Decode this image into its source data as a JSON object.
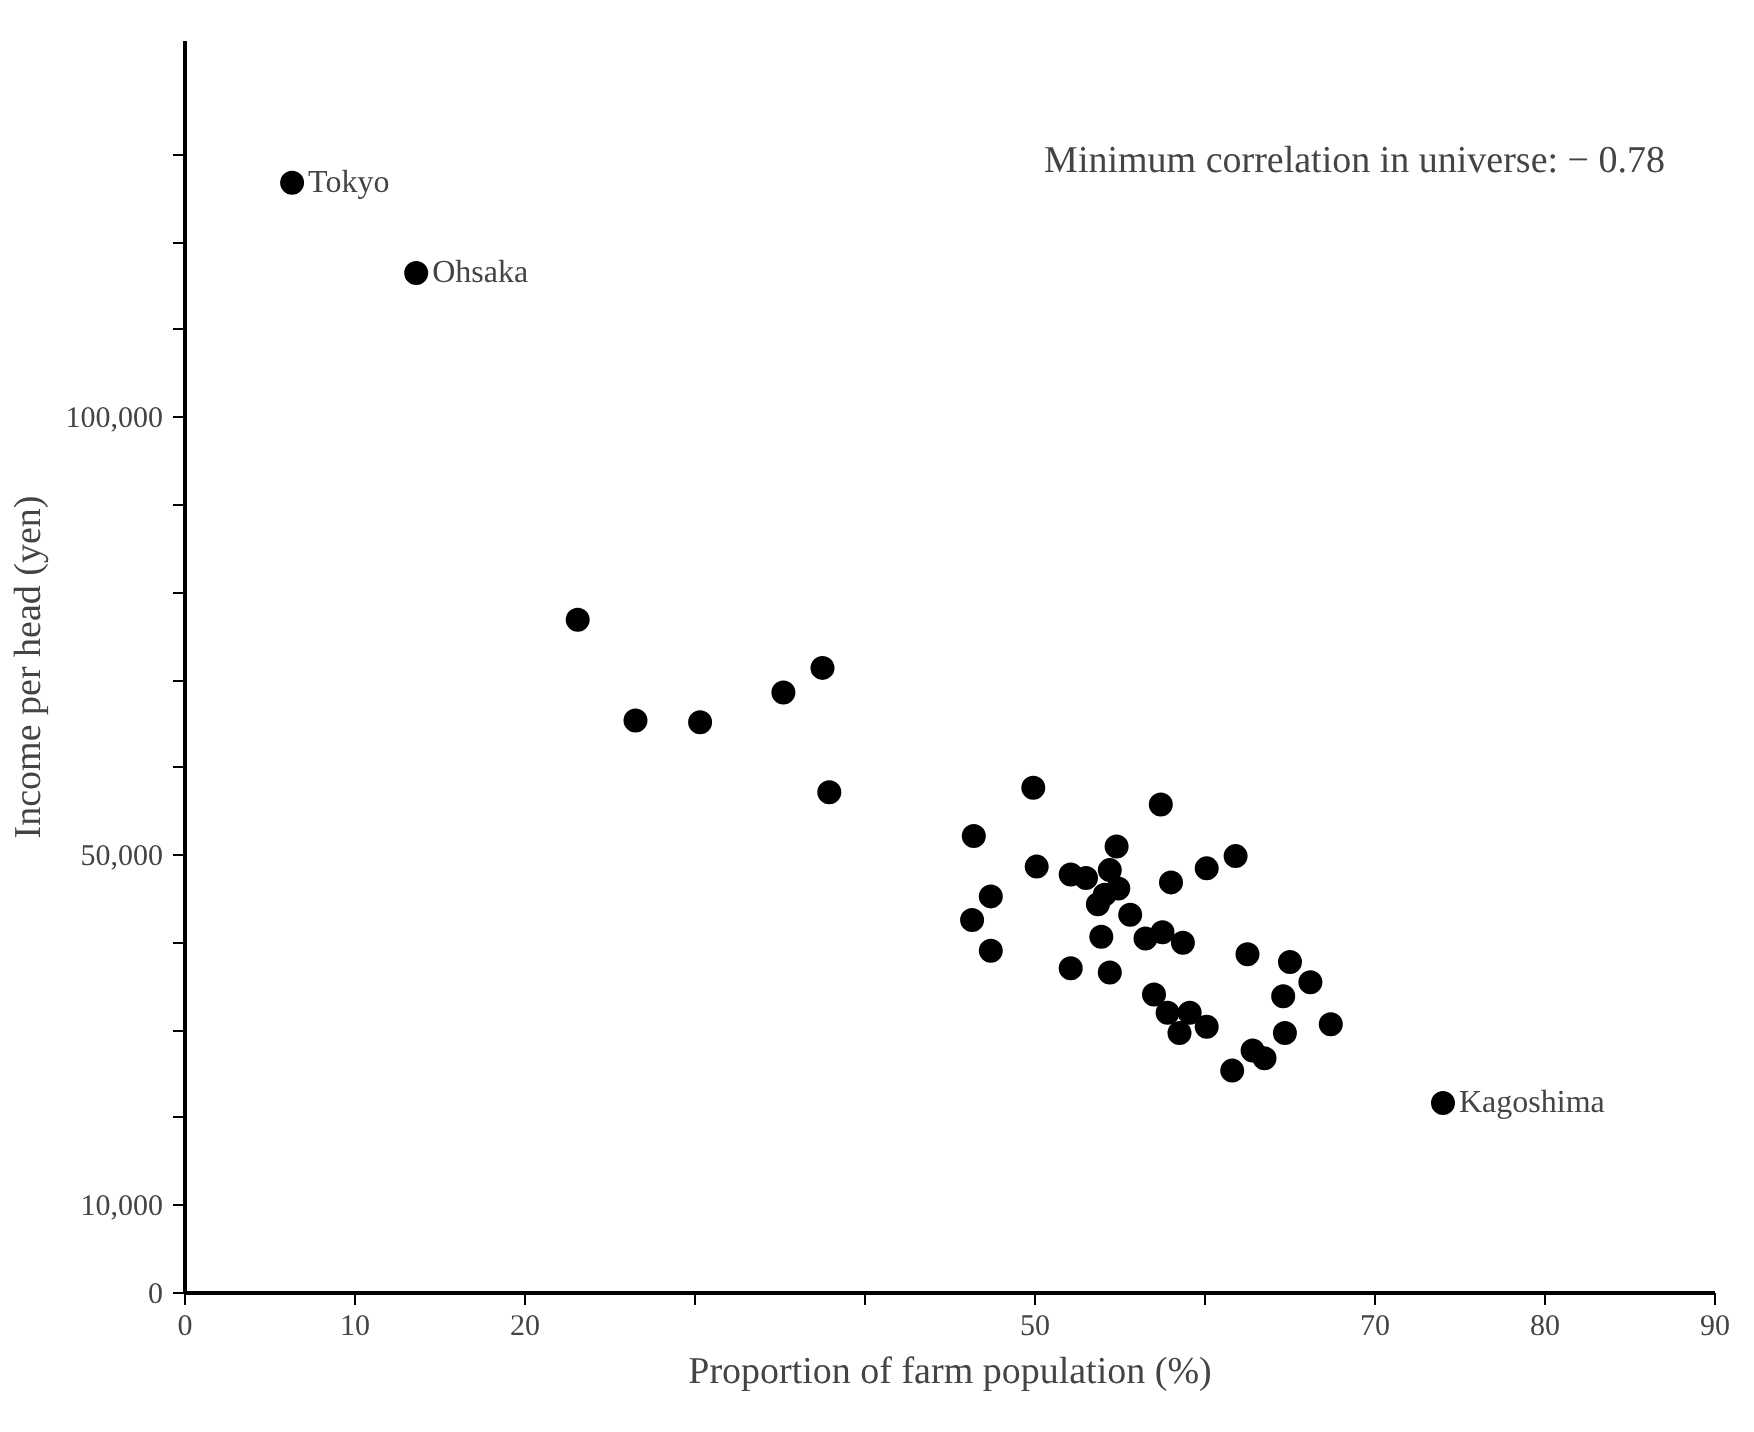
{
  "chart_data": {
    "type": "scatter",
    "xlabel": "Proportion of farm population (%)",
    "ylabel": "Income per head (yen)",
    "x": [
      6.3,
      13.6,
      74.0,
      23.1,
      26.5,
      30.3,
      35.2,
      37.5,
      37.9,
      49.9,
      57.4,
      46.4,
      54.8,
      61.8,
      50.1,
      60.1,
      52.1,
      53.0,
      54.4,
      58.0,
      54.9,
      54.1,
      47.4,
      53.7,
      55.6,
      46.3,
      53.9,
      56.5,
      57.5,
      58.7,
      47.4,
      62.5,
      65.0,
      66.2,
      52.1,
      54.4,
      64.6,
      57.0,
      57.8,
      59.1,
      67.4,
      58.5,
      60.1,
      64.7,
      62.8,
      63.5,
      61.6
    ],
    "series": [
      {
        "color": "#000000",
        "values": [
          126800,
          116500,
          21700,
          76900,
          65400,
          65200,
          68600,
          71400,
          57200,
          57700,
          55800,
          52200,
          51000,
          49900,
          48700,
          48500,
          47800,
          47400,
          48300,
          46900,
          46200,
          45500,
          45300,
          44400,
          43200,
          42600,
          40700,
          40500,
          41200,
          40000,
          39100,
          38700,
          37800,
          35500,
          37100,
          36600,
          33900,
          34100,
          32000,
          32000,
          30700,
          29700,
          30400,
          29700,
          27700,
          26800,
          25400
        ]
      }
    ],
    "marker": "circle",
    "grid": false,
    "xlim": [
      0,
      90
    ],
    "xticks": [
      0,
      10,
      20,
      {
        "value": 30,
        "label": null
      },
      {
        "value": 40,
        "label": null
      },
      50,
      {
        "value": 60,
        "label": null
      },
      70,
      80,
      90
    ],
    "ylim": [
      0,
      143000
    ],
    "yticks": [
      {
        "value": 0,
        "label": "0"
      },
      {
        "value": 10000,
        "label": "10,000"
      },
      {
        "value": 20000,
        "label": null
      },
      {
        "value": 30000,
        "label": null
      },
      {
        "value": 40000,
        "label": null
      },
      {
        "value": 50000,
        "label": "50,000"
      },
      {
        "value": 60000,
        "label": null
      },
      {
        "value": 70000,
        "label": null
      },
      {
        "value": 80000,
        "label": null
      },
      {
        "value": 90000,
        "label": null
      },
      {
        "value": 100000,
        "label": "100,000"
      },
      {
        "value": 110000,
        "label": null
      },
      {
        "value": 120000,
        "label": null
      },
      {
        "value": 130000,
        "label": null
      }
    ],
    "annotations": [
      {
        "text": "Tokyo",
        "x": 6.3,
        "y": 126800
      },
      {
        "text": "Ohsaka",
        "x": 13.6,
        "y": 116500
      },
      {
        "text": "Kagoshima",
        "x": 74.0,
        "y": 21700
      },
      "Minimum correlation in universe: − 0.78"
    ]
  }
}
